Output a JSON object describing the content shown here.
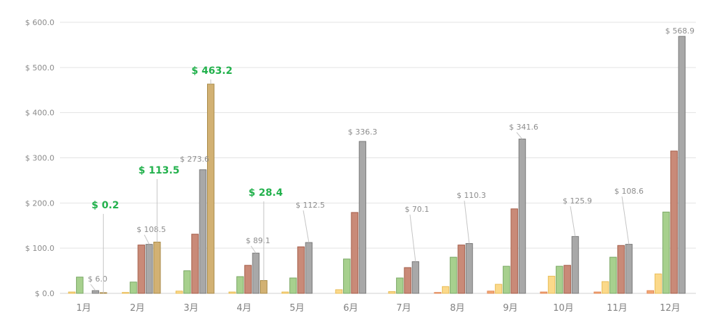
{
  "chart_data": {
    "type": "bar",
    "categories": [
      "1月",
      "2月",
      "3月",
      "4月",
      "5月",
      "6月",
      "7月",
      "8月",
      "9月",
      "10月",
      "11月",
      "12月"
    ],
    "y_tick_labels": [
      "$ 0.0",
      "$ 100.0",
      "$ 200.0",
      "$ 300.0",
      "$ 400.0",
      "$ 500.0",
      "$ 600.0"
    ],
    "ylim": [
      0,
      600
    ],
    "grid": true,
    "series": [
      {
        "values": [
          0,
          0,
          0,
          0,
          0,
          0,
          0,
          2,
          5,
          3,
          3,
          6
        ]
      },
      {
        "values": [
          3,
          2,
          5,
          3,
          3,
          8,
          4,
          15,
          20,
          38,
          26,
          43
        ]
      },
      {
        "values": [
          36,
          25,
          50,
          37,
          34,
          76,
          34,
          80,
          60,
          60,
          80,
          180
        ]
      },
      {
        "values": [
          0,
          107,
          131,
          62,
          103,
          179,
          57,
          107,
          187,
          62,
          106,
          315
        ]
      },
      {
        "values": [
          6.0,
          108.5,
          273.6,
          89.1,
          112.5,
          336.3,
          70.1,
          110.3,
          341.6,
          125.9,
          108.6,
          568.9
        ]
      },
      {
        "values": [
          0.2,
          113.5,
          463.2,
          28.4,
          null,
          null,
          null,
          null,
          null,
          null,
          null,
          null
        ]
      }
    ],
    "data_labels": {
      "gray": [
        "$ 6.0",
        "$ 108.5",
        "$ 273.6",
        "$ 89.1",
        "$ 112.5",
        "$ 336.3",
        "$ 70.1",
        "$ 110.3",
        "$ 341.6",
        "$ 125.9",
        "$ 108.6",
        "$ 568.9"
      ],
      "gold": [
        "$ 0.2",
        "$ 113.5",
        "$ 463.2",
        "$ 28.4"
      ]
    },
    "colors": {
      "series": [
        "#f4a874",
        "#fbd98a",
        "#a7d08e",
        "#c98a78",
        "#a8a8a8",
        "#d2b173"
      ],
      "series_stroke": [
        "#e0895a",
        "#e8bc57",
        "#7aa865",
        "#a45c48",
        "#7a7a7a",
        "#a88a48"
      ],
      "highlight_label": "#22b14c",
      "gray_label": "#8c8c8c",
      "grid": "#e3e3e3",
      "axis_text": "#8a8a8a"
    }
  }
}
